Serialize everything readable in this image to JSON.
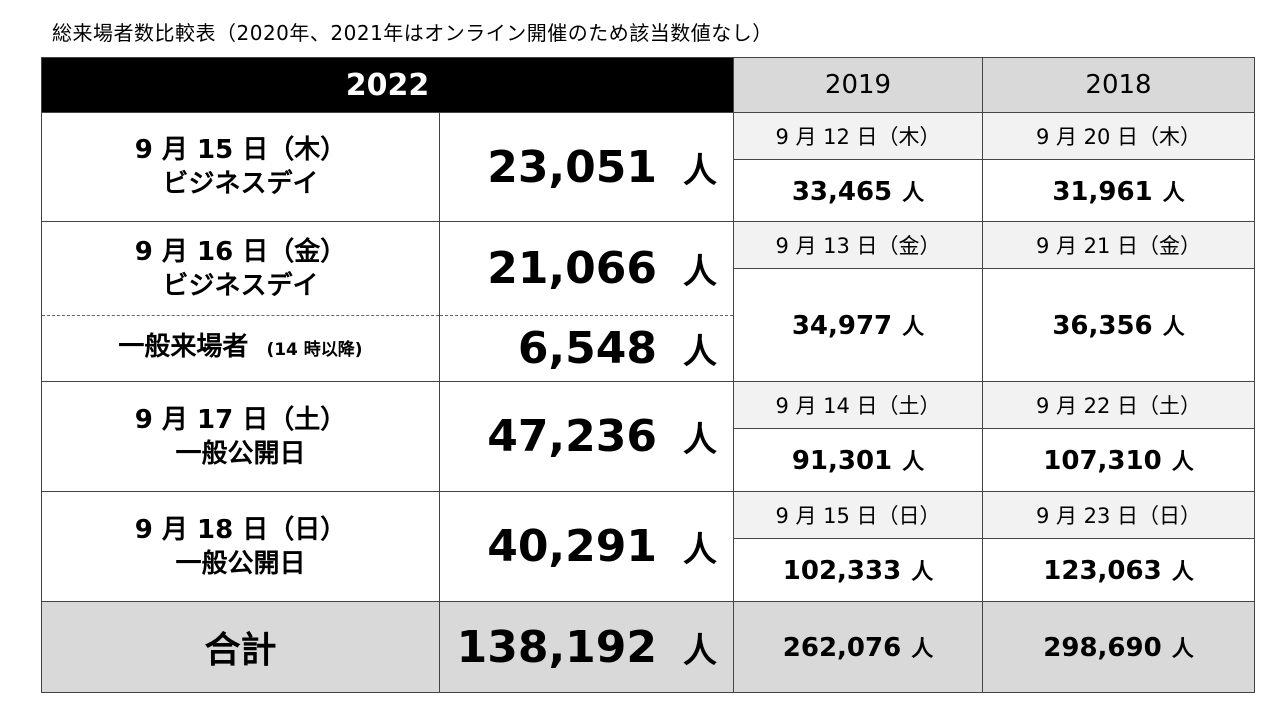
{
  "title": "総来場者数比較表（2020年、2021年はオンライン開催のため該当数値なし）",
  "header": {
    "year_2022": "2022",
    "year_2019": "2019",
    "year_2018": "2018"
  },
  "rows": [
    {
      "date": "9 月 15 日（木）",
      "label": "ビジネスデイ",
      "value_2022": "23,051",
      "date_2019": "9 月 12 日（木）",
      "value_2019": "33,465",
      "date_2018": "9 月 20 日（木）",
      "value_2018": "31,961"
    },
    {
      "date": "9 月 16 日（金）",
      "label": "ビジネスデイ",
      "value_2022": "21,066",
      "sub_label": "一般来場者",
      "sub_note": "(14 時以降)",
      "sub_value_2022": "6,548",
      "date_2019": "9 月 13 日（金）",
      "value_2019": "34,977",
      "date_2018": "9 月 21 日（金）",
      "value_2018": "36,356"
    },
    {
      "date": "9 月 17 日（土）",
      "label": "一般公開日",
      "value_2022": "47,236",
      "date_2019": "9 月 14 日（土）",
      "value_2019": "91,301",
      "date_2018": "9 月 22 日（土）",
      "value_2018": "107,310"
    },
    {
      "date": "9 月 18 日（日）",
      "label": "一般公開日",
      "value_2022": "40,291",
      "date_2019": "9 月 15 日（日）",
      "value_2019": "102,333",
      "date_2018": "9 月 23 日（日）",
      "value_2018": "123,063"
    }
  ],
  "total": {
    "label": "合計",
    "value_2022": "138,192",
    "value_2019": "262,076",
    "value_2018": "298,690"
  },
  "unit": "人"
}
